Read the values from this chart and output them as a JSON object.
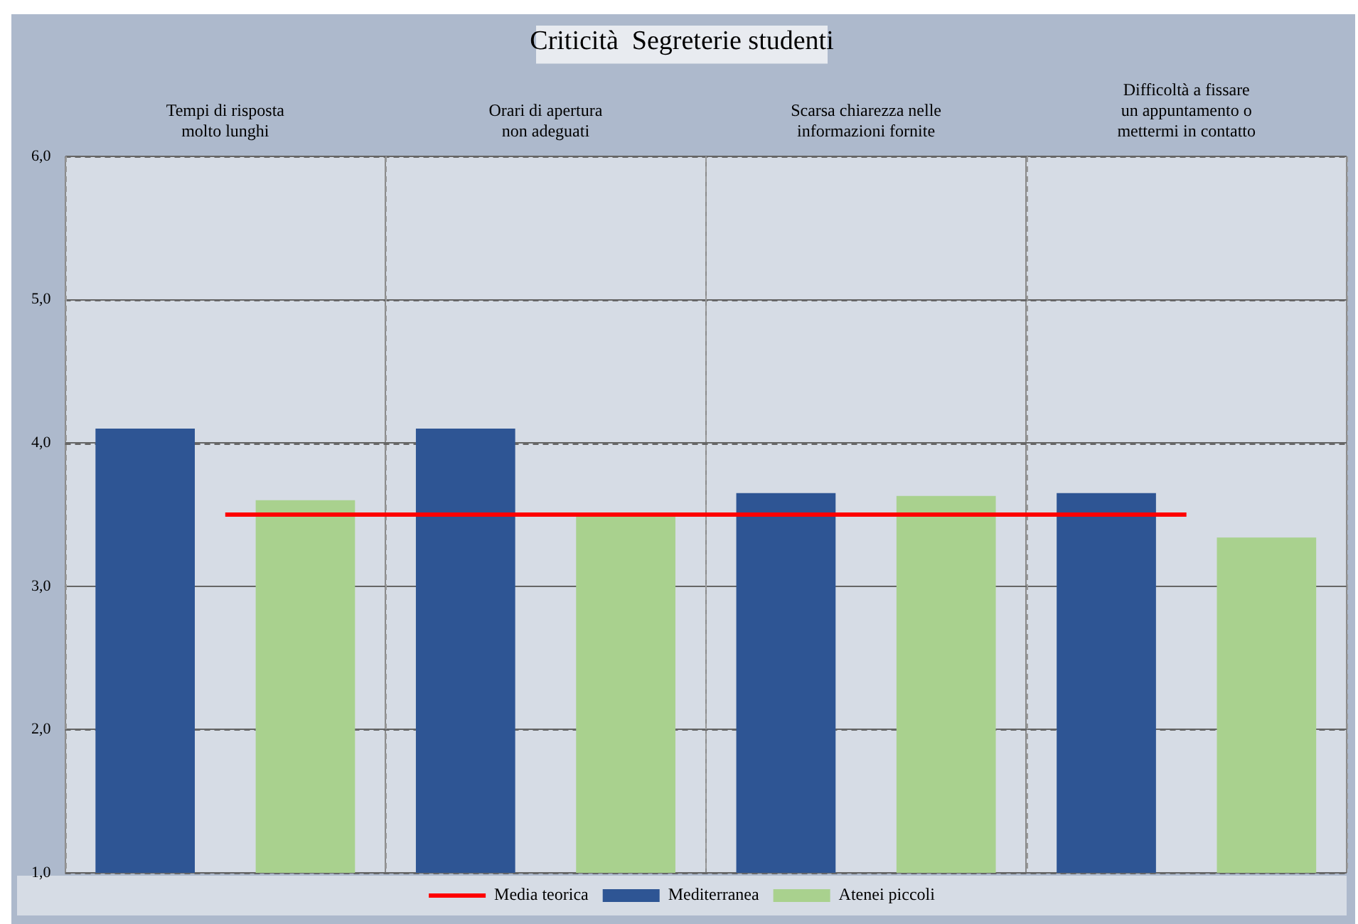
{
  "chart_data": {
    "type": "bar",
    "title": "Criticità  Segreterie studenti",
    "categories": [
      "Tempi di risposta\nmolto lunghi",
      "Orari di apertura\nnon adeguati",
      "Scarsa chiarezza nelle\ninformazioni fornite",
      "Difficoltà a fissare\nun appuntamento o\nmettermi in contatto"
    ],
    "series": [
      {
        "name": "Mediterranea",
        "color": "#2e5594",
        "values": [
          4.1,
          4.1,
          3.65,
          3.65
        ]
      },
      {
        "name": "Atenei piccoli",
        "color": "#a9d18e",
        "values": [
          3.6,
          3.5,
          3.63,
          3.34
        ]
      },
      {
        "name": "Media teorica",
        "type": "line",
        "color": "#ff0000",
        "values": [
          3.5,
          3.5,
          3.5,
          3.5
        ]
      }
    ],
    "ylim": [
      1,
      6
    ],
    "yticks": [
      {
        "value": 1,
        "label": "1,0"
      },
      {
        "value": 2,
        "label": "2,0"
      },
      {
        "value": 3,
        "label": "3,0"
      },
      {
        "value": 4,
        "label": "4,0"
      },
      {
        "value": 5,
        "label": "5,0"
      },
      {
        "value": 6,
        "label": "6,0"
      }
    ],
    "grid": true,
    "legend": "bottom",
    "marker": "none",
    "line_style": "solid"
  }
}
